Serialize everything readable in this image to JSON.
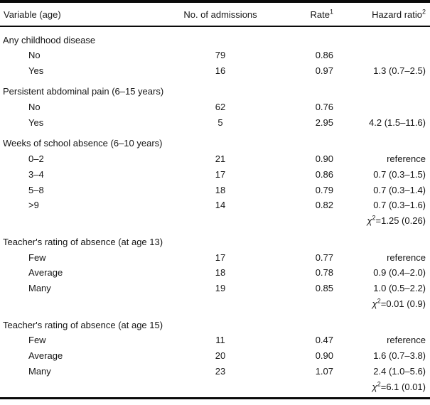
{
  "header": {
    "variable": "Variable (age)",
    "admissions": "No. of admissions",
    "rate": "Rate",
    "rate_sup": "1",
    "hazard": "Hazard ratio",
    "hazard_sup": "2"
  },
  "rows": [
    {
      "type": "section",
      "label": "Any childhood disease"
    },
    {
      "type": "data",
      "label": "No",
      "admissions": "79",
      "rate": "0.86",
      "hazard": ""
    },
    {
      "type": "data",
      "label": "Yes",
      "admissions": "16",
      "rate": "0.97",
      "hazard": "1.3 (0.7–2.5)"
    },
    {
      "type": "section",
      "label": "Persistent abdominal pain (6–15 years)"
    },
    {
      "type": "data",
      "label": "No",
      "admissions": "62",
      "rate": "0.76",
      "hazard": ""
    },
    {
      "type": "data",
      "label": "Yes",
      "admissions": "5",
      "rate": "2.95",
      "hazard": "4.2 (1.5–11.6)"
    },
    {
      "type": "section",
      "label": "Weeks of school absence (6–10 years)"
    },
    {
      "type": "data",
      "label": "0–2",
      "admissions": "21",
      "rate": "0.90",
      "hazard": "reference"
    },
    {
      "type": "data",
      "label": "3–4",
      "admissions": "17",
      "rate": "0.86",
      "hazard": "0.7 (0.3–1.5)"
    },
    {
      "type": "data",
      "label": "5–8",
      "admissions": "18",
      "rate": "0.79",
      "hazard": "0.7 (0.3–1.4)"
    },
    {
      "type": "data",
      "label": ">9",
      "admissions": "14",
      "rate": "0.82",
      "hazard": "0.7 (0.3–1.6)"
    },
    {
      "type": "chi",
      "symbol": "χ",
      "sup": "2",
      "rest": "=1.25 (0.26)"
    },
    {
      "type": "section",
      "label": "Teacher's rating of absence (at age 13)"
    },
    {
      "type": "data",
      "label": "Few",
      "admissions": "17",
      "rate": "0.77",
      "hazard": "reference"
    },
    {
      "type": "data",
      "label": "Average",
      "admissions": "18",
      "rate": "0.78",
      "hazard": "0.9 (0.4–2.0)"
    },
    {
      "type": "data",
      "label": "Many",
      "admissions": "19",
      "rate": "0.85",
      "hazard": "1.0 (0.5–2.2)"
    },
    {
      "type": "chi",
      "symbol": "χ",
      "sup": "2",
      "rest": "=0.01 (0.9)"
    },
    {
      "type": "section",
      "label": "Teacher's rating of absence (at age 15)"
    },
    {
      "type": "data",
      "label": "Few",
      "admissions": "11",
      "rate": "0.47",
      "hazard": "reference"
    },
    {
      "type": "data",
      "label": "Average",
      "admissions": "20",
      "rate": "0.90",
      "hazard": "1.6 (0.7–3.8)"
    },
    {
      "type": "data",
      "label": "Many",
      "admissions": "23",
      "rate": "1.07",
      "hazard": "2.4 (1.0–5.6)"
    },
    {
      "type": "chi",
      "symbol": "χ",
      "sup": "2",
      "rest": "=6.1 (0.01)"
    }
  ]
}
